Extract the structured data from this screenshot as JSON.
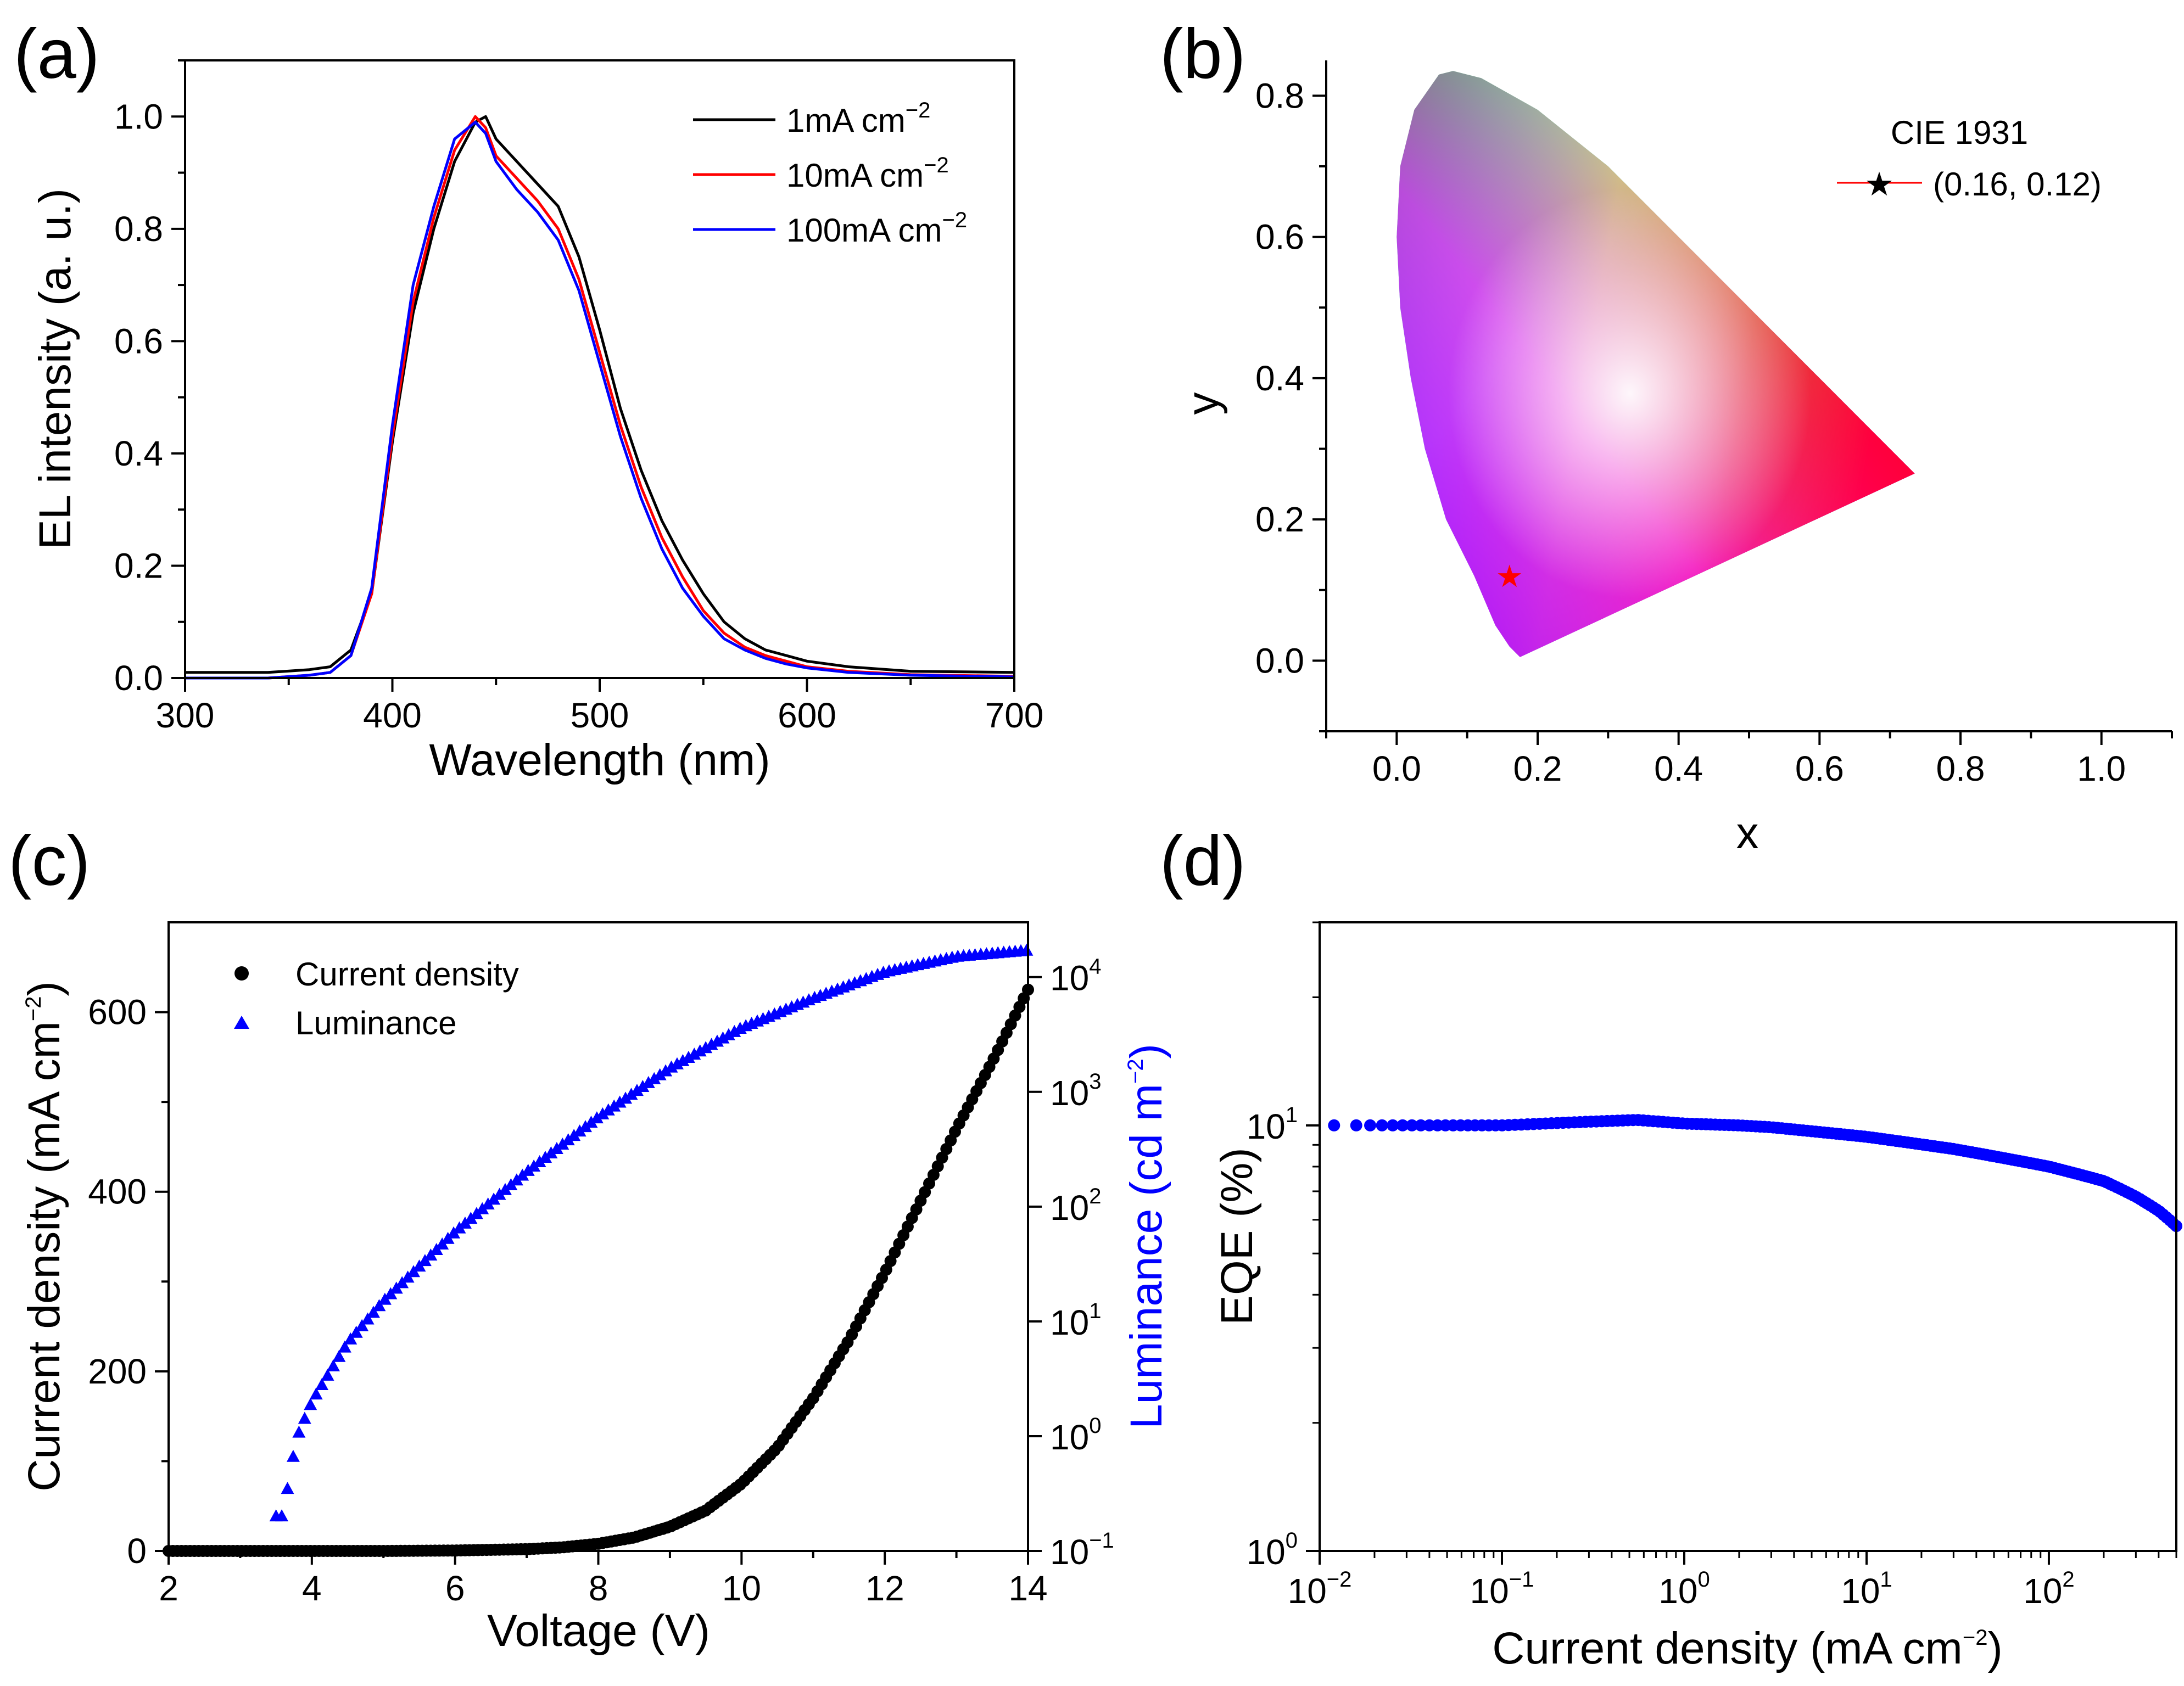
{
  "chart_data": [
    {
      "panel": "(a)",
      "type": "line",
      "xlabel": "Wavelength (nm)",
      "ylabel": "EL intensity (a. u.)",
      "xlim": [
        300,
        700
      ],
      "ylim": [
        0,
        1.1
      ],
      "xticks": [
        300,
        400,
        500,
        600,
        700
      ],
      "yticks": [
        0.0,
        0.2,
        0.4,
        0.6,
        0.8,
        1.0
      ],
      "legend_position": "top-right",
      "series": [
        {
          "name": "1mA cm",
          "sup": "−2",
          "color": "#000000",
          "x": [
            300,
            340,
            360,
            370,
            380,
            390,
            400,
            410,
            420,
            430,
            440,
            445,
            450,
            460,
            470,
            480,
            490,
            500,
            510,
            520,
            530,
            540,
            550,
            560,
            570,
            580,
            590,
            600,
            620,
            650,
            700
          ],
          "y": [
            0.01,
            0.01,
            0.015,
            0.02,
            0.05,
            0.15,
            0.42,
            0.65,
            0.8,
            0.92,
            0.99,
            1.0,
            0.96,
            0.92,
            0.88,
            0.84,
            0.75,
            0.62,
            0.48,
            0.37,
            0.28,
            0.21,
            0.15,
            0.1,
            0.07,
            0.05,
            0.04,
            0.03,
            0.02,
            0.012,
            0.01
          ]
        },
        {
          "name": "10mA cm",
          "sup": "−2",
          "color": "#ff0000",
          "x": [
            300,
            340,
            360,
            370,
            380,
            390,
            400,
            410,
            420,
            430,
            440,
            445,
            450,
            460,
            470,
            480,
            490,
            500,
            510,
            520,
            530,
            540,
            550,
            560,
            570,
            580,
            590,
            600,
            620,
            650,
            700
          ],
          "y": [
            0.0,
            0.0,
            0.005,
            0.01,
            0.04,
            0.15,
            0.43,
            0.67,
            0.82,
            0.94,
            1.0,
            0.98,
            0.93,
            0.89,
            0.85,
            0.8,
            0.71,
            0.58,
            0.45,
            0.34,
            0.25,
            0.18,
            0.12,
            0.08,
            0.055,
            0.04,
            0.03,
            0.02,
            0.012,
            0.006,
            0.003
          ]
        },
        {
          "name": "100mA cm",
          "sup": "−2",
          "color": "#0000ff",
          "x": [
            300,
            340,
            360,
            370,
            380,
            390,
            400,
            410,
            420,
            430,
            440,
            445,
            450,
            460,
            470,
            480,
            490,
            500,
            510,
            520,
            530,
            540,
            550,
            560,
            570,
            580,
            590,
            600,
            620,
            650,
            700
          ],
          "y": [
            0.0,
            0.0,
            0.005,
            0.01,
            0.04,
            0.16,
            0.45,
            0.7,
            0.84,
            0.96,
            0.99,
            0.97,
            0.92,
            0.87,
            0.83,
            0.78,
            0.69,
            0.56,
            0.43,
            0.32,
            0.23,
            0.16,
            0.11,
            0.07,
            0.05,
            0.035,
            0.025,
            0.018,
            0.01,
            0.005,
            0.002
          ]
        }
      ]
    },
    {
      "panel": "(b)",
      "type": "scatter",
      "title": "CIE 1931",
      "xlabel": "x",
      "ylabel": "y",
      "xlim": [
        -0.1,
        1.1
      ],
      "ylim": [
        -0.1,
        0.85
      ],
      "xticks": [
        "0.0",
        "0.2",
        "0.4",
        "0.6",
        "0.8",
        "1.0"
      ],
      "yticks": [
        "0.0",
        "0.2",
        "0.4",
        "0.6",
        "0.8"
      ],
      "legend_position": "top-right",
      "point": {
        "x": 0.16,
        "y": 0.12,
        "label": "(0.16, 0.12)",
        "color": "#ff0000",
        "marker": "★"
      },
      "locus": [
        [
          0.175,
          0.005
        ],
        [
          0.17,
          0.01
        ],
        [
          0.16,
          0.02
        ],
        [
          0.14,
          0.05
        ],
        [
          0.11,
          0.12
        ],
        [
          0.07,
          0.2
        ],
        [
          0.04,
          0.3
        ],
        [
          0.02,
          0.4
        ],
        [
          0.005,
          0.5
        ],
        [
          0.0,
          0.6
        ],
        [
          0.005,
          0.7
        ],
        [
          0.025,
          0.78
        ],
        [
          0.06,
          0.83
        ],
        [
          0.08,
          0.835
        ],
        [
          0.12,
          0.825
        ],
        [
          0.2,
          0.78
        ],
        [
          0.3,
          0.7
        ],
        [
          0.4,
          0.6
        ],
        [
          0.5,
          0.5
        ],
        [
          0.6,
          0.4
        ],
        [
          0.7,
          0.3
        ],
        [
          0.735,
          0.265
        ]
      ]
    },
    {
      "panel": "(c)",
      "type": "scatter",
      "xlabel": "Voltage (V)",
      "ylabel": "Current density (mA cm",
      "ylabel_sup": "−2",
      "ylabel2": "Luminance (cd m",
      "ylabel2_sup": "−2",
      "xlim": [
        2,
        14
      ],
      "ylim": [
        0,
        700
      ],
      "y2lim": [
        0.1,
        30000
      ],
      "xticks": [
        2,
        4,
        6,
        8,
        10,
        12,
        14
      ],
      "yticks": [
        0,
        200,
        400,
        600
      ],
      "y2ticks": [
        {
          "base": "10",
          "exp": "−1",
          "v": 0.1
        },
        {
          "base": "10",
          "exp": "0",
          "v": 1
        },
        {
          "base": "10",
          "exp": "1",
          "v": 10
        },
        {
          "base": "10",
          "exp": "2",
          "v": 100
        },
        {
          "base": "10",
          "exp": "3",
          "v": 1000
        },
        {
          "base": "10",
          "exp": "4",
          "v": 10000
        }
      ],
      "legend_position": "top-left",
      "series": [
        {
          "name": "Current density",
          "color": "#000000",
          "marker": "circle",
          "axis": "left",
          "x": [
            2,
            3,
            4,
            5,
            6,
            7,
            7.5,
            8,
            8.5,
            9,
            9.5,
            10,
            10.5,
            11,
            11.5,
            12,
            12.5,
            13,
            13.5,
            14
          ],
          "y": [
            0,
            0,
            0,
            0,
            0.5,
            2,
            4,
            8,
            15,
            27,
            45,
            75,
            115,
            170,
            235,
            310,
            390,
            470,
            545,
            625
          ]
        },
        {
          "name": "Luminance",
          "color": "#0000ff",
          "marker": "triangle",
          "axis": "right",
          "x": [
            3.5,
            3.6,
            3.7,
            3.8,
            4.0,
            4.5,
            5,
            6,
            7,
            8,
            9,
            10,
            11,
            12,
            13,
            14
          ],
          "y2": [
            0.2,
            0.2,
            0.5,
            1.0,
            2.0,
            6.5,
            15,
            60,
            200,
            600,
            1600,
            3600,
            6500,
            11000,
            15000,
            17000
          ]
        }
      ]
    },
    {
      "panel": "(d)",
      "type": "scatter",
      "xlabel": "Current density (mA cm",
      "xlabel_sup": "−2",
      "ylabel": "EQE (%)",
      "xscale": "log",
      "yscale": "log",
      "xlim": [
        0.01,
        500
      ],
      "ylim": [
        1,
        30
      ],
      "xticks": [
        {
          "base": "10",
          "exp": "−2",
          "v": 0.01
        },
        {
          "base": "10",
          "exp": "−1",
          "v": 0.1
        },
        {
          "base": "10",
          "exp": "0",
          "v": 1
        },
        {
          "base": "10",
          "exp": "1",
          "v": 10
        },
        {
          "base": "10",
          "exp": "2",
          "v": 100
        }
      ],
      "yticks": [
        {
          "base": "10",
          "exp": "0",
          "v": 1
        },
        {
          "base": "10",
          "exp": "1",
          "v": 10
        }
      ],
      "series": [
        {
          "name": "EQE",
          "color": "#0000ff",
          "marker": "circle",
          "x": [
            0.012,
            0.03,
            0.1,
            0.3,
            0.55,
            1.0,
            2.0,
            3.0,
            10,
            30,
            100,
            200,
            300,
            400,
            500
          ],
          "y": [
            10.0,
            10.0,
            10.0,
            10.2,
            10.3,
            10.1,
            10.0,
            9.9,
            9.4,
            8.8,
            8.0,
            7.4,
            6.8,
            6.3,
            5.8
          ]
        }
      ]
    }
  ]
}
